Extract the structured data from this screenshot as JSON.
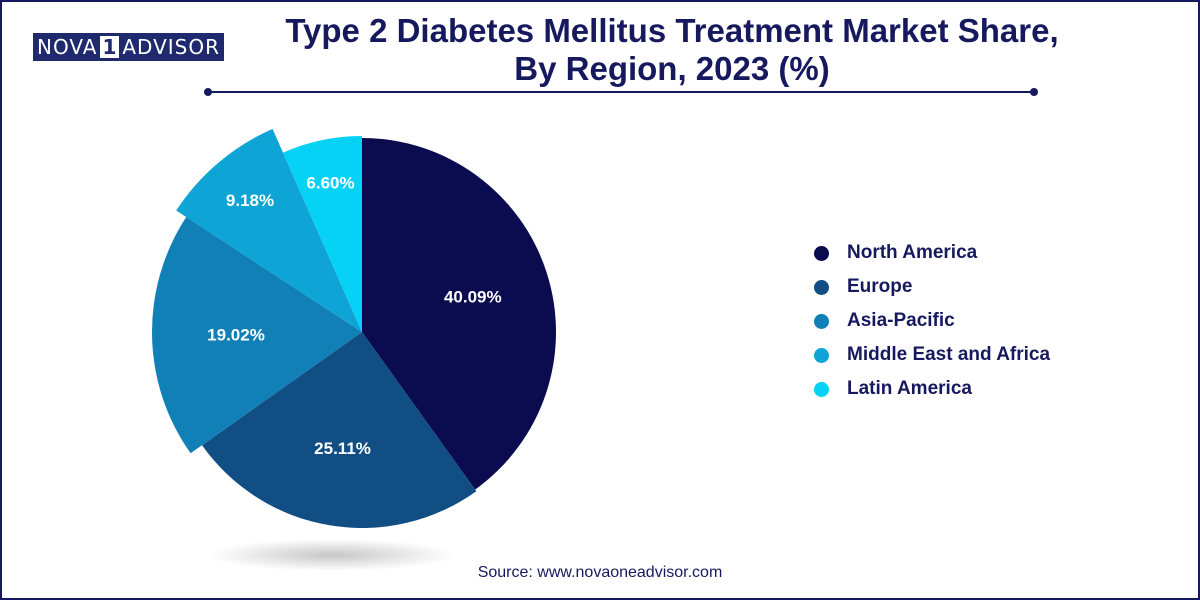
{
  "brand": {
    "logo_left": "NOVA",
    "logo_one": "1",
    "logo_right": "ADVISOR"
  },
  "title_line1": "Type 2 Diabetes Mellitus Treatment Market Share,",
  "title_line2": "By Region, 2023 (%)",
  "source": "Source: www.novaoneadvisor.com",
  "chart_data": {
    "type": "pie",
    "title": "Type 2 Diabetes Mellitus Treatment Market Share, By Region, 2023 (%)",
    "legend_position": "right",
    "categories": [
      "North America",
      "Europe",
      "Asia-Pacific",
      "Middle East and Africa",
      "Latin America"
    ],
    "values": [
      40.09,
      25.11,
      19.02,
      9.18,
      6.6
    ],
    "value_labels": [
      "40.09%",
      "25.11%",
      "19.02%",
      "9.18%",
      "6.60%"
    ],
    "colors": [
      "#0b0b4f",
      "#114e84",
      "#1180b7",
      "#0ea5d6",
      "#05d2f5"
    ]
  }
}
